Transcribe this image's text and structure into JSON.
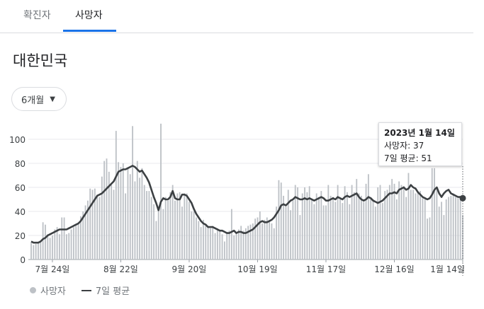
{
  "tabs": [
    {
      "label": "확진자"
    },
    {
      "label": "사망자"
    }
  ],
  "region": "대한민국",
  "dropdown": {
    "selected": "6개월"
  },
  "legend": {
    "bars": "사망자",
    "line": "7일 평균"
  },
  "tooltip": {
    "date": "2023년 1월 14일",
    "deaths": "사망자: 37",
    "avg": "7일 평균: 51"
  },
  "colors": {
    "bar": "#bdc1c6",
    "line": "#3c4043",
    "accent": "#1a73e8"
  },
  "chart_data": {
    "type": "bar",
    "y_ticks": [
      0,
      20,
      40,
      60,
      80,
      100
    ],
    "ylim": [
      0,
      118
    ],
    "x_tick_labels": [
      "7월 24일",
      "8월 22일",
      "9월 20일",
      "10월 19일",
      "11월 17일",
      "12월 16일",
      "1월 14일"
    ],
    "x_tick_indices": [
      9,
      38,
      67,
      96,
      125,
      154,
      183
    ],
    "series": [
      {
        "kind": "bar",
        "name": "사망자",
        "values": [
          14,
          12,
          13,
          14,
          16,
          31,
          29,
          21,
          18,
          20,
          25,
          27,
          21,
          35,
          35,
          21,
          22,
          25,
          27,
          28,
          30,
          36,
          40,
          45,
          49,
          59,
          58,
          59,
          54,
          52,
          69,
          82,
          84,
          73,
          62,
          58,
          107,
          81,
          77,
          80,
          55,
          76,
          71,
          111,
          65,
          82,
          68,
          76,
          62,
          57,
          57,
          52,
          46,
          32,
          42,
          113,
          42,
          52,
          49,
          56,
          62,
          49,
          55,
          56,
          44,
          55,
          55,
          48,
          40,
          40,
          35,
          32,
          27,
          33,
          28,
          28,
          26,
          28,
          22,
          26,
          24,
          21,
          15,
          23,
          24,
          42,
          20,
          23,
          25,
          28,
          24,
          26,
          28,
          29,
          30,
          34,
          35,
          40,
          30,
          33,
          35,
          33,
          30,
          26,
          44,
          66,
          64,
          53,
          44,
          58,
          41,
          49,
          62,
          60,
          37,
          55,
          60,
          56,
          61,
          50,
          46,
          55,
          52,
          57,
          45,
          45,
          62,
          53,
          52,
          48,
          62,
          50,
          47,
          61,
          56,
          46,
          62,
          56,
          67,
          55,
          53,
          48,
          63,
          71,
          50,
          50,
          44,
          60,
          62,
          47,
          57,
          58,
          62,
          67,
          63,
          50,
          65,
          62,
          61,
          52,
          72,
          58,
          58,
          55,
          56,
          57,
          51,
          50,
          34,
          35,
          76,
          76,
          58,
          44,
          48,
          37,
          50,
          52,
          53,
          55,
          52,
          51,
          50,
          37
        ]
      },
      {
        "kind": "line",
        "name": "7일 평균",
        "values": [
          15,
          14,
          14,
          14,
          15,
          17,
          18,
          20,
          21,
          22,
          23,
          24,
          25,
          25,
          25,
          25,
          26,
          27,
          28,
          29,
          30,
          32,
          35,
          38,
          41,
          44,
          47,
          50,
          53,
          54,
          55,
          57,
          59,
          61,
          63,
          65,
          69,
          73,
          74,
          75,
          75,
          76,
          77,
          78,
          77,
          75,
          73,
          74,
          71,
          68,
          64,
          58,
          52,
          47,
          41,
          48,
          51,
          50,
          50,
          52,
          57,
          51,
          50,
          50,
          54,
          54,
          53,
          50,
          47,
          42,
          38,
          35,
          32,
          30,
          29,
          27,
          27,
          27,
          26,
          25,
          24,
          24,
          23,
          22,
          22,
          23,
          24,
          22,
          23,
          23,
          22,
          22,
          23,
          24,
          25,
          27,
          29,
          31,
          32,
          31,
          31,
          32,
          33,
          35,
          38,
          41,
          45,
          46,
          45,
          47,
          49,
          50,
          52,
          51,
          50,
          50,
          51,
          50,
          51,
          50,
          49,
          50,
          51,
          52,
          51,
          49,
          49,
          50,
          51,
          50,
          52,
          51,
          50,
          52,
          53,
          52,
          53,
          54,
          55,
          52,
          50,
          49,
          50,
          52,
          51,
          49,
          48,
          47,
          48,
          49,
          51,
          53,
          55,
          55,
          56,
          55,
          58,
          59,
          60,
          58,
          59,
          62,
          60,
          59,
          56,
          54,
          52,
          51,
          50,
          51,
          54,
          58,
          60,
          55,
          52,
          55,
          57,
          58,
          55,
          54,
          53,
          52,
          52,
          51
        ]
      }
    ]
  }
}
